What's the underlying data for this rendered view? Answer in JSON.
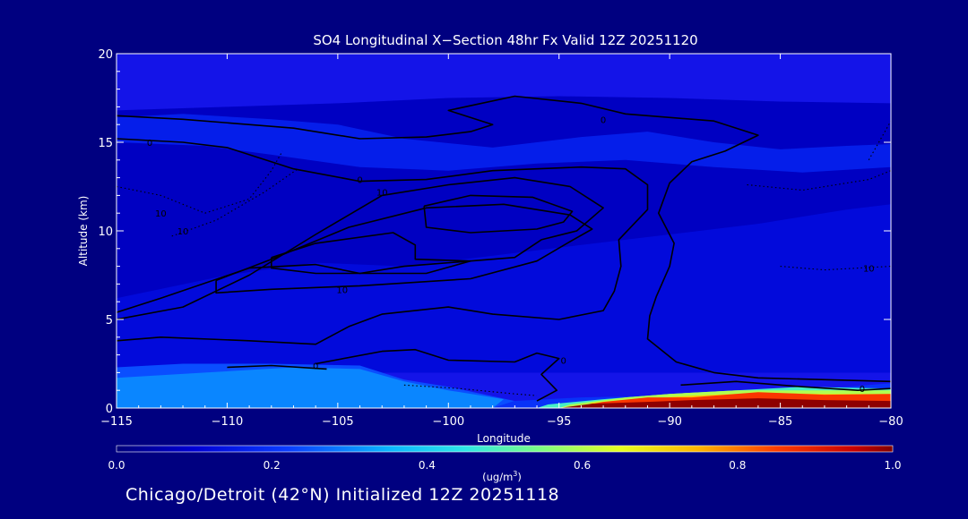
{
  "chart_data": {
    "type": "heatmap",
    "title": "SO4 Longitudinal X−Section 48hr  Fx Valid 12Z 20251120",
    "xlabel": "Longitude",
    "ylabel": "Altitude (km)",
    "xlim": [
      -115,
      -80
    ],
    "ylim": [
      0,
      20
    ],
    "x_ticks": [
      -115,
      -110,
      -105,
      -100,
      -95,
      -90,
      -85,
      -80
    ],
    "x_tick_labels": [
      "−115",
      "−110",
      "−105",
      "−100",
      "−95",
      "−90",
      "−85",
      "−80"
    ],
    "y_ticks": [
      0,
      5,
      10,
      15,
      20
    ],
    "y_tick_labels": [
      "0",
      "5",
      "10",
      "15",
      "20"
    ],
    "colorbar": {
      "min": 0.0,
      "max": 1.0,
      "ticks": [
        0.0,
        0.2,
        0.4,
        0.6,
        0.8,
        1.0
      ],
      "tick_labels": [
        "0.0",
        "0.2",
        "0.4",
        "0.6",
        "0.8",
        "1.0"
      ],
      "unit_text": "(ug/m",
      "unit_sup": "3",
      "unit_close": ")"
    },
    "fill_regions": [
      {
        "value": 0.08,
        "points": [
          [
            -115,
            16.8
          ],
          [
            -110,
            17.0
          ],
          [
            -105,
            17.2
          ],
          [
            -100,
            17.5
          ],
          [
            -95,
            17.6
          ],
          [
            -90,
            17.5
          ],
          [
            -85,
            17.3
          ],
          [
            -80,
            17.2
          ],
          [
            -80,
            2.0
          ],
          [
            -115,
            2.0
          ]
        ]
      },
      {
        "value": 0.16,
        "points": [
          [
            -115,
            16.4
          ],
          [
            -112,
            16.6
          ],
          [
            -108,
            16.3
          ],
          [
            -105,
            16.0
          ],
          [
            -102,
            15.2
          ],
          [
            -98,
            14.7
          ],
          [
            -94,
            15.3
          ],
          [
            -91,
            15.6
          ],
          [
            -88,
            15.0
          ],
          [
            -85,
            14.6
          ],
          [
            -82,
            14.8
          ],
          [
            -80,
            14.9
          ],
          [
            -80,
            13.6
          ],
          [
            -84,
            13.3
          ],
          [
            -88,
            13.6
          ],
          [
            -92,
            14.0
          ],
          [
            -96,
            13.8
          ],
          [
            -100,
            13.4
          ],
          [
            -104,
            13.6
          ],
          [
            -108,
            14.3
          ],
          [
            -111,
            14.8
          ],
          [
            -115,
            15.0
          ]
        ]
      },
      {
        "value": 0.12,
        "points": [
          [
            -115,
            6.2
          ],
          [
            -110,
            7.5
          ],
          [
            -106,
            8.2
          ],
          [
            -102,
            8.0
          ],
          [
            -98,
            8.6
          ],
          [
            -94,
            9.2
          ],
          [
            -90,
            9.8
          ],
          [
            -86,
            10.4
          ],
          [
            -82,
            11.2
          ],
          [
            -80,
            11.5
          ],
          [
            -80,
            2.0
          ],
          [
            -115,
            2.0
          ]
        ]
      },
      {
        "value": 0.24,
        "points": [
          [
            -115,
            2.3
          ],
          [
            -112,
            2.5
          ],
          [
            -108,
            2.5
          ],
          [
            -104,
            2.4
          ],
          [
            -102,
            1.6
          ],
          [
            -100,
            1.2
          ],
          [
            -97,
            0.4
          ],
          [
            -98,
            0.0
          ],
          [
            -115,
            0.0
          ]
        ]
      },
      {
        "value": 0.3,
        "points": [
          [
            -111,
            2.0
          ],
          [
            -107,
            2.3
          ],
          [
            -104,
            2.2
          ],
          [
            -102,
            1.5
          ],
          [
            -100,
            1.0
          ],
          [
            -97.5,
            0.5
          ],
          [
            -98,
            0.0
          ],
          [
            -115,
            0.0
          ],
          [
            -115,
            1.7
          ]
        ]
      },
      {
        "value": 0.2,
        "points": [
          [
            -98,
            0.0
          ],
          [
            -97,
            0.4
          ],
          [
            -94,
            0.6
          ],
          [
            -90,
            0.7
          ],
          [
            -86,
            1.0
          ],
          [
            -82,
            1.2
          ],
          [
            -80,
            1.4
          ],
          [
            -80,
            0.0
          ]
        ]
      },
      {
        "value": 0.48,
        "points": [
          [
            -96,
            0.0
          ],
          [
            -95.5,
            0.2
          ],
          [
            -93,
            0.5
          ],
          [
            -90,
            0.8
          ],
          [
            -87,
            1.0
          ],
          [
            -84,
            1.2
          ],
          [
            -80,
            1.1
          ],
          [
            -80,
            0.0
          ]
        ]
      },
      {
        "value": 0.6,
        "points": [
          [
            -95,
            0.0
          ],
          [
            -94.5,
            0.2
          ],
          [
            -92,
            0.6
          ],
          [
            -90,
            0.8
          ],
          [
            -87,
            1.0
          ],
          [
            -84,
            1.0
          ],
          [
            -80,
            1.0
          ],
          [
            -80,
            0.0
          ]
        ]
      },
      {
        "value": 0.72,
        "points": [
          [
            -94,
            0.0
          ],
          [
            -93.5,
            0.3
          ],
          [
            -91,
            0.55
          ],
          [
            -89,
            0.7
          ],
          [
            -86,
            0.85
          ],
          [
            -83,
            0.8
          ],
          [
            -80,
            0.8
          ],
          [
            -80,
            0.0
          ]
        ]
      },
      {
        "value": 0.86,
        "points": [
          [
            -94.5,
            0.0
          ],
          [
            -93,
            0.35
          ],
          [
            -91,
            0.6
          ],
          [
            -89,
            0.6
          ],
          [
            -86,
            0.9
          ],
          [
            -83,
            0.75
          ],
          [
            -80,
            0.8
          ],
          [
            -80,
            0.0
          ]
        ]
      },
      {
        "value": 0.99,
        "points": [
          [
            -95,
            0.0
          ],
          [
            -93.5,
            0.25
          ],
          [
            -91,
            0.35
          ],
          [
            -89,
            0.45
          ],
          [
            -86,
            0.55
          ],
          [
            -83,
            0.45
          ],
          [
            -80,
            0.4
          ],
          [
            -80,
            0.0
          ]
        ]
      }
    ],
    "contours": [
      {
        "label": "0",
        "style": "solid",
        "label_at": [
          -93,
          16.3
        ],
        "points": [
          [
            -115,
            16.5
          ],
          [
            -112,
            16.3
          ],
          [
            -107,
            15.8
          ],
          [
            -104,
            15.2
          ],
          [
            -101,
            15.3
          ],
          [
            -99,
            15.6
          ],
          [
            -98,
            16.0
          ],
          [
            -100,
            16.8
          ],
          [
            -97,
            17.6
          ],
          [
            -94,
            17.2
          ],
          [
            -92,
            16.6
          ],
          [
            -88,
            16.2
          ],
          [
            -86,
            15.4
          ],
          [
            -87.5,
            14.5
          ],
          [
            -89,
            13.9
          ],
          [
            -90,
            12.7
          ],
          [
            -90.5,
            11.0
          ],
          [
            -89.8,
            9.3
          ],
          [
            -90,
            8.0
          ],
          [
            -90.6,
            6.3
          ],
          [
            -90.9,
            5.2
          ],
          [
            -91,
            3.9
          ],
          [
            -89.7,
            2.6
          ],
          [
            -88,
            2.0
          ],
          [
            -86,
            1.7
          ],
          [
            -80,
            1.5
          ]
        ]
      },
      {
        "label": "0",
        "style": "solid",
        "label_at": [
          -113.5,
          15
        ],
        "points": [
          [
            -115,
            15.2
          ],
          [
            -112,
            15.0
          ],
          [
            -110,
            14.7
          ],
          [
            -107,
            13.5
          ],
          [
            -104,
            12.8
          ],
          [
            -101,
            12.9
          ],
          [
            -98,
            13.4
          ],
          [
            -94,
            13.6
          ],
          [
            -92,
            13.5
          ],
          [
            -91,
            12.6
          ],
          [
            -91,
            11.2
          ],
          [
            -92.3,
            9.5
          ],
          [
            -92.2,
            8.0
          ],
          [
            -92.5,
            6.6
          ],
          [
            -93,
            5.5
          ],
          [
            -95,
            5.0
          ],
          [
            -98,
            5.3
          ],
          [
            -100,
            5.7
          ],
          [
            -103,
            5.3
          ],
          [
            -104.5,
            4.6
          ],
          [
            -106,
            3.6
          ],
          [
            -109,
            3.8
          ],
          [
            -113,
            4.0
          ],
          [
            -115,
            3.8
          ]
        ]
      },
      {
        "label": "0",
        "style": "solid",
        "label_at": [
          -104,
          12.9
        ],
        "points": [
          [
            -115,
            5.0
          ],
          [
            -112,
            5.7
          ],
          [
            -109,
            7.5
          ],
          [
            -106,
            9.8
          ],
          [
            -103,
            12.0
          ],
          [
            -100,
            12.6
          ],
          [
            -97,
            13.0
          ],
          [
            -94.5,
            12.5
          ],
          [
            -93,
            11.3
          ],
          [
            -94.2,
            10.0
          ],
          [
            -95.8,
            9.5
          ],
          [
            -97,
            8.5
          ],
          [
            -99,
            8.3
          ],
          [
            -102,
            8.0
          ],
          [
            -104,
            7.6
          ],
          [
            -106,
            8.1
          ],
          [
            -109,
            7.9
          ],
          [
            -113,
            6.2
          ],
          [
            -115,
            5.4
          ]
        ]
      },
      {
        "label": "10",
        "style": "solid",
        "label_at": [
          -103,
          12.2
        ],
        "points": [
          [
            -110.5,
            7.2
          ],
          [
            -108,
            8.4
          ],
          [
            -104.5,
            10.2
          ],
          [
            -101,
            11.3
          ],
          [
            -97.5,
            11.5
          ],
          [
            -94.5,
            10.9
          ],
          [
            -93.5,
            10.1
          ],
          [
            -94.5,
            9.4
          ],
          [
            -96,
            8.3
          ],
          [
            -99,
            7.3
          ],
          [
            -104,
            6.9
          ],
          [
            -108,
            6.7
          ],
          [
            -110.5,
            6.5
          ],
          [
            -110.5,
            7.2
          ]
        ]
      },
      {
        "label": "",
        "style": "solid",
        "label_at": [
          -97,
          11
        ],
        "points": [
          [
            -108,
            8.5
          ],
          [
            -106,
            9.3
          ],
          [
            -102.5,
            9.9
          ],
          [
            -101.5,
            9.2
          ],
          [
            -101.5,
            8.4
          ],
          [
            -99,
            8.3
          ],
          [
            -101,
            7.6
          ],
          [
            -106,
            7.6
          ],
          [
            -108,
            7.9
          ],
          [
            -108,
            8.5
          ]
        ]
      },
      {
        "label": "10",
        "style": "solid",
        "label_at": [
          -104.8,
          6.7
        ],
        "points": [
          [
            -101.1,
            11.4
          ],
          [
            -99,
            12.0
          ],
          [
            -96.2,
            11.9
          ],
          [
            -94.4,
            11.1
          ],
          [
            -94.8,
            10.5
          ],
          [
            -96,
            10.1
          ],
          [
            -99,
            9.9
          ],
          [
            -101,
            10.2
          ],
          [
            -101.1,
            11.4
          ]
        ]
      },
      {
        "label": "0",
        "style": "solid",
        "label_at": [
          -94.8,
          2.7
        ],
        "points": [
          [
            -106,
            2.5
          ],
          [
            -103,
            3.2
          ],
          [
            -101.5,
            3.3
          ],
          [
            -100,
            2.7
          ],
          [
            -97,
            2.6
          ],
          [
            -96,
            3.1
          ],
          [
            -95,
            2.8
          ],
          [
            -95.8,
            1.9
          ],
          [
            -95.1,
            1.0
          ],
          [
            -96,
            0.4
          ]
        ]
      },
      {
        "label": "0",
        "style": "solid",
        "label_at": [
          -106,
          2.4
        ],
        "points": [
          [
            -110,
            2.3
          ],
          [
            -108,
            2.4
          ],
          [
            -105.5,
            2.2
          ]
        ]
      },
      {
        "label": "0",
        "style": "solid",
        "label_at": [
          -81.3,
          1.1
        ],
        "points": [
          [
            -89.5,
            1.3
          ],
          [
            -87,
            1.5
          ],
          [
            -84,
            1.2
          ],
          [
            -81.5,
            1.0
          ],
          [
            -80,
            1.1
          ]
        ]
      },
      {
        "label": "10",
        "style": "dotted",
        "label_at": [
          -113,
          11
        ],
        "points": [
          [
            -115,
            12.5
          ],
          [
            -113,
            12.0
          ],
          [
            -111,
            11.0
          ],
          [
            -109,
            11.8
          ],
          [
            -108,
            13.4
          ],
          [
            -107.5,
            14.5
          ]
        ]
      },
      {
        "label": "10",
        "style": "dotted",
        "label_at": [
          -112,
          10
        ],
        "points": [
          [
            -112.5,
            9.7
          ],
          [
            -110.5,
            10.6
          ],
          [
            -108.3,
            12.2
          ],
          [
            -106.8,
            13.5
          ]
        ]
      },
      {
        "label": "10",
        "style": "dotted",
        "label_at": [
          -81,
          7.9
        ],
        "points": [
          [
            -85,
            8.0
          ],
          [
            -83,
            7.8
          ],
          [
            -80,
            8.0
          ]
        ]
      },
      {
        "label": "",
        "style": "dotted",
        "label_at": [
          -80,
          16
        ],
        "points": [
          [
            -81,
            14.0
          ],
          [
            -80,
            16.2
          ]
        ]
      },
      {
        "label": "",
        "style": "dotted",
        "label_at": [
          -85,
          12
        ],
        "points": [
          [
            -86.5,
            12.6
          ],
          [
            -84,
            12.3
          ],
          [
            -81,
            12.9
          ],
          [
            -80,
            13.4
          ]
        ]
      },
      {
        "label": "",
        "style": "dotted",
        "label_at": [
          -102,
          1.5
        ],
        "points": [
          [
            -102,
            1.3
          ],
          [
            -99.5,
            1.1
          ],
          [
            -97,
            0.8
          ],
          [
            -96,
            0.7
          ]
        ]
      }
    ]
  },
  "footer": {
    "text": "Chicago/Detroit (42°N) Initialized 12Z 20251118"
  }
}
